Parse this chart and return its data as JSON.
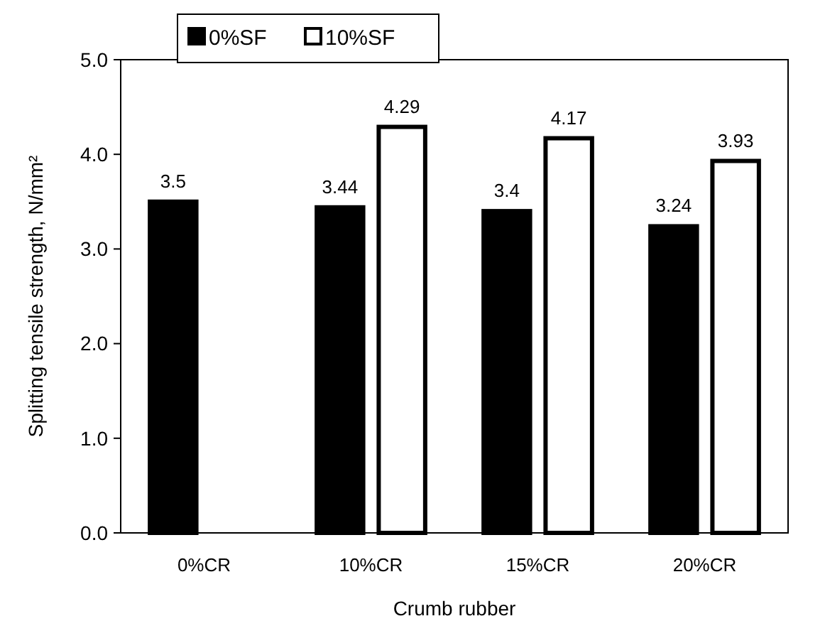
{
  "chart_data": {
    "type": "bar",
    "xlabel": "Crumb rubber",
    "ylabel": "Splitting tensile strength, N/mm²",
    "categories": [
      "0%CR",
      "10%CR",
      "15%CR",
      "20%CR"
    ],
    "series": [
      {
        "name": "0%SF",
        "color": "#000000",
        "values": [
          3.5,
          3.44,
          3.4,
          3.24
        ]
      },
      {
        "name": "10%SF",
        "color": "#ffffff",
        "values": [
          null,
          4.29,
          4.17,
          3.93
        ]
      }
    ],
    "ylim": [
      0,
      5
    ],
    "yticks": [
      {
        "value": 0,
        "label": "0.0"
      },
      {
        "value": 1,
        "label": "1.0"
      },
      {
        "value": 2,
        "label": "2.0"
      },
      {
        "value": 3,
        "label": "3.0"
      },
      {
        "value": 4,
        "label": "4.0"
      },
      {
        "value": 5,
        "label": "5.0"
      }
    ],
    "data_labels": true,
    "legend": "top left",
    "grid": false
  }
}
